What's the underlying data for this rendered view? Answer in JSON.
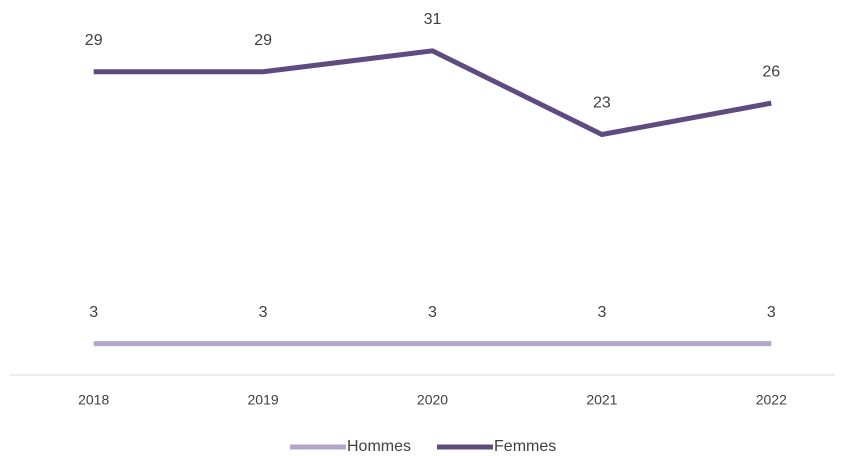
{
  "chart_data": {
    "type": "line",
    "categories": [
      "2018",
      "2019",
      "2020",
      "2021",
      "2022"
    ],
    "series": [
      {
        "name": "Hommes",
        "color": "#b3a6cb",
        "values": [
          3,
          3,
          3,
          3,
          3
        ]
      },
      {
        "name": "Femmes",
        "color": "#5e4b7f",
        "values": [
          29,
          29,
          31,
          23,
          26
        ]
      }
    ],
    "ylim": [
      0,
      35
    ]
  }
}
